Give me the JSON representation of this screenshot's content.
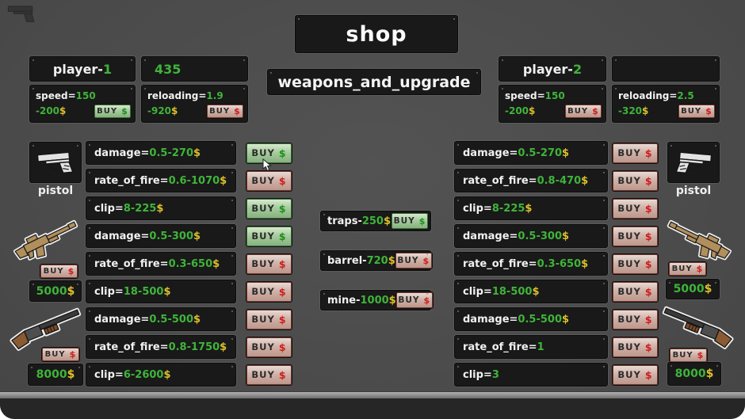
{
  "shop": {
    "title": "shop",
    "subtitle": "weapons_and_upgrade"
  },
  "buy": {
    "label": "BUY",
    "dollar": "$"
  },
  "colors": {
    "value_green": "#3fb43a",
    "price_yellow": "#dcbf2b",
    "buy_green": "#9cc494",
    "buy_red": "#cdaba0",
    "dollar_red": "#d01d1d",
    "dollar_green": "#1d901d"
  },
  "player1": {
    "name_prefix": "player-",
    "name_number": "1",
    "money": "435",
    "speed": {
      "label": "speed=",
      "value": "150",
      "price": "-200",
      "dollar": "$",
      "buy": "green"
    },
    "reloading": {
      "label": "reloading=",
      "value": "1.9",
      "price": "-920",
      "dollar": "$",
      "buy": "red"
    }
  },
  "player2": {
    "name_prefix": "player-",
    "name_number": "2",
    "money": "",
    "speed": {
      "label": "speed=",
      "value": "150",
      "price": "-200",
      "dollar": "$",
      "buy": "red"
    },
    "reloading": {
      "label": "reloading=",
      "value": "2.5",
      "price": "-320",
      "dollar": "$",
      "buy": "red"
    }
  },
  "left": {
    "pistol_label": "pistol",
    "rifle_price": {
      "value": "5000",
      "dollar": "$"
    },
    "shotgun_price": {
      "value": "8000",
      "dollar": "$"
    },
    "rows": [
      {
        "label": "damage=",
        "value": "0.5-270",
        "dollar": "$",
        "buy": "green"
      },
      {
        "label": "rate_of_fire=",
        "value": "0.6-1070",
        "dollar": "$",
        "buy": "red"
      },
      {
        "label": "clip=",
        "value": "8-225",
        "dollar": "$",
        "buy": "green"
      },
      {
        "label": "damage=",
        "value": "0.5-300",
        "dollar": "$",
        "buy": "green"
      },
      {
        "label": "rate_of_fire=",
        "value": "0.3-650",
        "dollar": "$",
        "buy": "red"
      },
      {
        "label": "clip=",
        "value": "18-500",
        "dollar": "$",
        "buy": "red"
      },
      {
        "label": "damage=",
        "value": "0.5-500",
        "dollar": "$",
        "buy": "red"
      },
      {
        "label": "rate_of_fire=",
        "value": "0.8-1750",
        "dollar": "$",
        "buy": "red"
      },
      {
        "label": "clip=",
        "value": "6-2600",
        "dollar": "$",
        "buy": "red"
      }
    ]
  },
  "right": {
    "pistol_label": "pistol",
    "rifle_price": {
      "value": "5000",
      "dollar": "$"
    },
    "shotgun_price": {
      "value": "8000",
      "dollar": "$"
    },
    "rows": [
      {
        "label": "damage=",
        "value": "0.5-270",
        "dollar": "$",
        "buy": "red"
      },
      {
        "label": "rate_of_fire=",
        "value": "0.8-470",
        "dollar": "$",
        "buy": "red"
      },
      {
        "label": "clip=",
        "value": "8-225",
        "dollar": "$",
        "buy": "red"
      },
      {
        "label": "damage=",
        "value": "0.5-300",
        "dollar": "$",
        "buy": "red"
      },
      {
        "label": "rate_of_fire=",
        "value": "0.3-650",
        "dollar": "$",
        "buy": "red"
      },
      {
        "label": "clip=",
        "value": "18-500",
        "dollar": "$",
        "buy": "red"
      },
      {
        "label": "damage=",
        "value": "0.5-500",
        "dollar": "$",
        "buy": "red"
      },
      {
        "label": "rate_of_fire=",
        "value": "1",
        "dollar": "",
        "buy": "red"
      },
      {
        "label": "clip=",
        "value": "3",
        "dollar": "",
        "buy": "red"
      }
    ]
  },
  "center": {
    "items": [
      {
        "label": "traps-",
        "value": "250",
        "dollar": "$",
        "buy": "green"
      },
      {
        "label": "barrel-",
        "value": "720",
        "dollar": "$",
        "buy": "red"
      },
      {
        "label": "mine-",
        "value": "1000",
        "dollar": "$",
        "buy": "red"
      }
    ]
  }
}
